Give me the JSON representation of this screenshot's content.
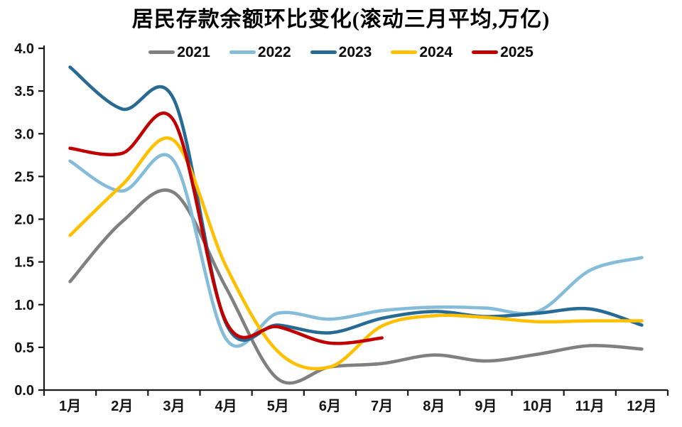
{
  "chart_data": {
    "type": "line",
    "title": "居民存款余额环比变化(滚动三月平均,万亿)",
    "categories": [
      "1月",
      "2月",
      "3月",
      "4月",
      "5月",
      "6月",
      "7月",
      "8月",
      "9月",
      "10月",
      "11月",
      "12月"
    ],
    "series": [
      {
        "name": "2021",
        "color": "#808080",
        "values": [
          1.27,
          1.97,
          2.31,
          1.2,
          0.13,
          0.27,
          0.31,
          0.41,
          0.34,
          0.42,
          0.52,
          0.48
        ]
      },
      {
        "name": "2022",
        "color": "#85BCD9",
        "values": [
          2.68,
          2.33,
          2.68,
          0.6,
          0.9,
          0.83,
          0.93,
          0.97,
          0.96,
          0.92,
          1.4,
          1.55
        ]
      },
      {
        "name": "2023",
        "color": "#276A93",
        "values": [
          3.78,
          3.29,
          3.4,
          0.78,
          0.76,
          0.67,
          0.84,
          0.92,
          0.86,
          0.9,
          0.95,
          0.76
        ]
      },
      {
        "name": "2024",
        "color": "#FFC000",
        "values": [
          1.81,
          2.4,
          2.92,
          1.45,
          0.45,
          0.27,
          0.75,
          0.87,
          0.85,
          0.8,
          0.81,
          0.81
        ]
      },
      {
        "name": "2025",
        "color": "#C00000",
        "values": [
          2.83,
          2.77,
          3.15,
          0.8,
          0.74,
          0.55,
          0.61
        ]
      }
    ],
    "ylim": [
      0.0,
      4.0
    ],
    "ytick_step": 0.5,
    "ytick_labels": [
      "0.0",
      "0.5",
      "1.0",
      "1.5",
      "2.0",
      "2.5",
      "3.0",
      "3.5",
      "4.0"
    ],
    "xlabel": "",
    "ylabel": "",
    "grid": false,
    "legend_position": "top-center",
    "axis_color": "#1a1a1a",
    "background": "#ffffff"
  }
}
